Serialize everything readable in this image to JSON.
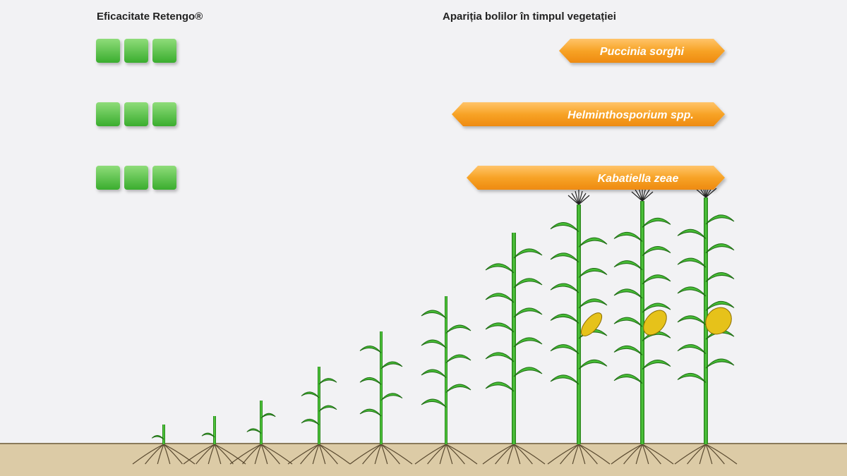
{
  "headers": {
    "efficacy": "Eficacitate Retengo®",
    "diseases": "Apariția bolilor în timpul vegetației"
  },
  "rows": [
    {
      "efficacy": 3,
      "disease": "Puccinia sorghi"
    },
    {
      "efficacy": 3,
      "disease": "Helminthosporium spp."
    },
    {
      "efficacy": 3,
      "disease": "Kabatiella zeae"
    }
  ]
}
